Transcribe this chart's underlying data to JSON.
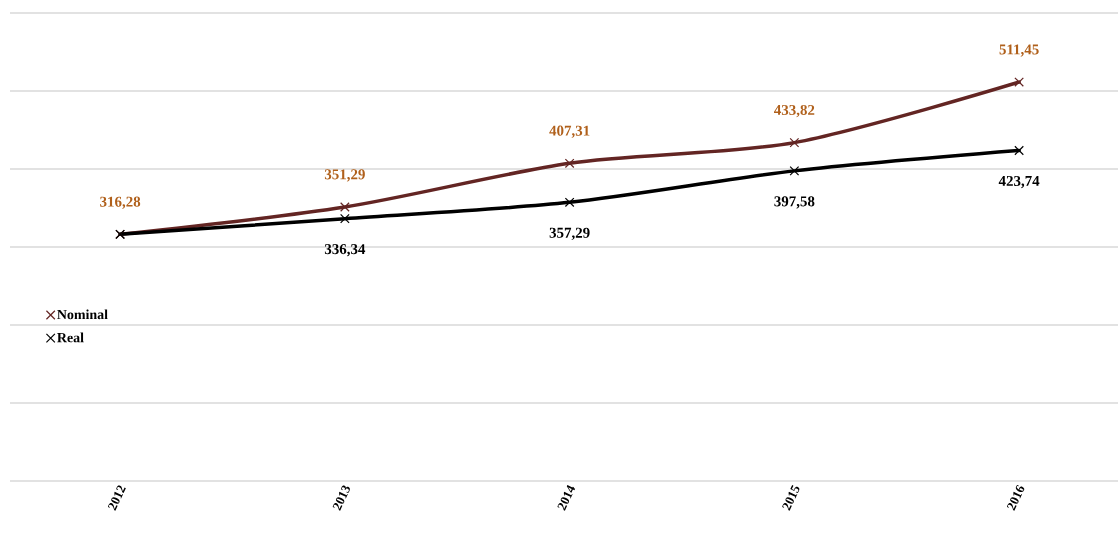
{
  "chart_data": {
    "type": "line",
    "categories": [
      "2012",
      "2013",
      "2014",
      "2015",
      "2016"
    ],
    "series": [
      {
        "name": "Nominal",
        "color": "#632523",
        "values": [
          316.28,
          351.29,
          407.31,
          433.82,
          511.45
        ],
        "value_labels": [
          "316,28",
          "351,29",
          "407,31",
          "433,82",
          "511,45"
        ]
      },
      {
        "name": "Real",
        "color": "#000000",
        "values": [
          316.28,
          336.34,
          357.29,
          397.58,
          423.74
        ],
        "value_labels": [
          null,
          "336,34",
          "357,29",
          "397,58",
          "423,74"
        ]
      }
    ],
    "ylim": [
      0,
      600
    ],
    "yticks": [
      {
        "value": 0,
        "label": null
      },
      {
        "value": 100,
        "label": null
      },
      {
        "value": 200,
        "label": null
      },
      {
        "value": 300,
        "label": null
      },
      {
        "value": 400,
        "label": null
      },
      {
        "value": 500,
        "label": null
      },
      {
        "value": 600,
        "label": null
      }
    ],
    "tick_labels": "x",
    "grid": "y",
    "legend": "left",
    "marker": "cross",
    "line_style": "solid"
  }
}
